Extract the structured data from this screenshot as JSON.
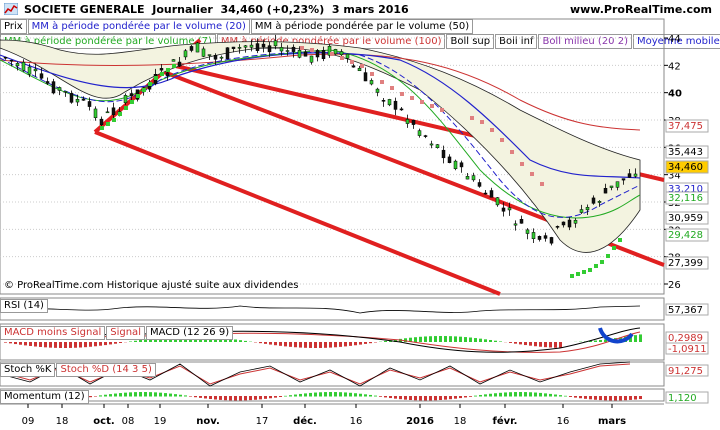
{
  "header": {
    "symbol": "SOCIETE GENERALE",
    "period": "Journalier",
    "price_change": "34,460 (+0,23%)",
    "date": "3 mars 2016",
    "site": "www.ProRealTime.com"
  },
  "legend_row1": [
    "Prix",
    "MM à période pondérée par le volume (20)",
    "MM à période pondérée par le volume (50)"
  ],
  "legend_row2": [
    "MM à période pondérée par le volume (7)",
    "MM à période pondérée par le volume (100)",
    "Boll sup",
    "Boll inf",
    "Boll milieu (20 2)",
    "Moyenne mobile"
  ],
  "watermark": "© ProRealTime.com Historique ajusté suite aux dividendes",
  "price_axis": {
    "ticks": [
      "44",
      "42",
      "40",
      "38",
      "36",
      "34",
      "32",
      "30",
      "28",
      "26"
    ],
    "labels": [
      {
        "text": "37,475",
        "color": "#cc3333"
      },
      {
        "text": "35,443",
        "color": "#000000"
      },
      {
        "text": "34,460",
        "color": "#000000",
        "bg": "#ffcc00"
      },
      {
        "text": "33,210",
        "color": "#2222cc"
      },
      {
        "text": "32,116",
        "color": "#22aa22"
      },
      {
        "text": "30,959",
        "color": "#000000"
      },
      {
        "text": "29,428",
        "color": "#22aa22"
      },
      {
        "text": "27,399",
        "color": "#000000"
      }
    ]
  },
  "indicators": {
    "rsi": {
      "label": "RSI (14)",
      "value": "57,367"
    },
    "macd": {
      "labels": [
        "MACD moins Signal",
        "Signal",
        "MACD (12 26 9)"
      ],
      "values": [
        "0,2989",
        "-1,0911"
      ]
    },
    "stoch": {
      "labels": [
        "Stoch %K",
        "Stoch %D (14 3 5)"
      ],
      "value": "91,275"
    },
    "momentum": {
      "label": "Momentum (12)",
      "value": "1,120"
    }
  },
  "x_axis": [
    "09",
    "18",
    "oct.",
    "08",
    "19",
    "nov.",
    "17",
    "déc.",
    "16",
    "2016",
    "18",
    "févr.",
    "16",
    "mars"
  ]
}
